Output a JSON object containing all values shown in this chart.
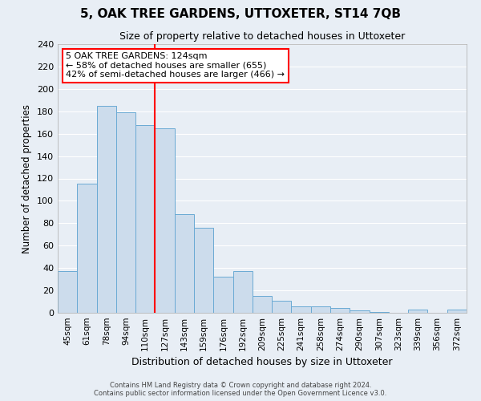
{
  "title": "5, OAK TREE GARDENS, UTTOXETER, ST14 7QB",
  "subtitle": "Size of property relative to detached houses in Uttoxeter",
  "xlabel": "Distribution of detached houses by size in Uttoxeter",
  "ylabel": "Number of detached properties",
  "bar_labels": [
    "45sqm",
    "61sqm",
    "78sqm",
    "94sqm",
    "110sqm",
    "127sqm",
    "143sqm",
    "159sqm",
    "176sqm",
    "192sqm",
    "209sqm",
    "225sqm",
    "241sqm",
    "258sqm",
    "274sqm",
    "290sqm",
    "307sqm",
    "323sqm",
    "339sqm",
    "356sqm",
    "372sqm"
  ],
  "bar_values": [
    37,
    115,
    185,
    179,
    168,
    165,
    88,
    76,
    32,
    37,
    15,
    11,
    6,
    6,
    4,
    2,
    1,
    0,
    3,
    0,
    3
  ],
  "bar_color": "#ccdcec",
  "bar_edgecolor": "#6aaad4",
  "vline_index": 5,
  "vline_color": "red",
  "annotation_title": "5 OAK TREE GARDENS: 124sqm",
  "annotation_line1": "← 58% of detached houses are smaller (655)",
  "annotation_line2": "42% of semi-detached houses are larger (466) →",
  "annotation_box_color": "white",
  "annotation_box_edgecolor": "red",
  "ylim": [
    0,
    240
  ],
  "yticks": [
    0,
    20,
    40,
    60,
    80,
    100,
    120,
    140,
    160,
    180,
    200,
    220,
    240
  ],
  "footer_line1": "Contains HM Land Registry data © Crown copyright and database right 2024.",
  "footer_line2": "Contains public sector information licensed under the Open Government Licence v3.0.",
  "bg_color": "#e8eef5",
  "grid_color": "white"
}
